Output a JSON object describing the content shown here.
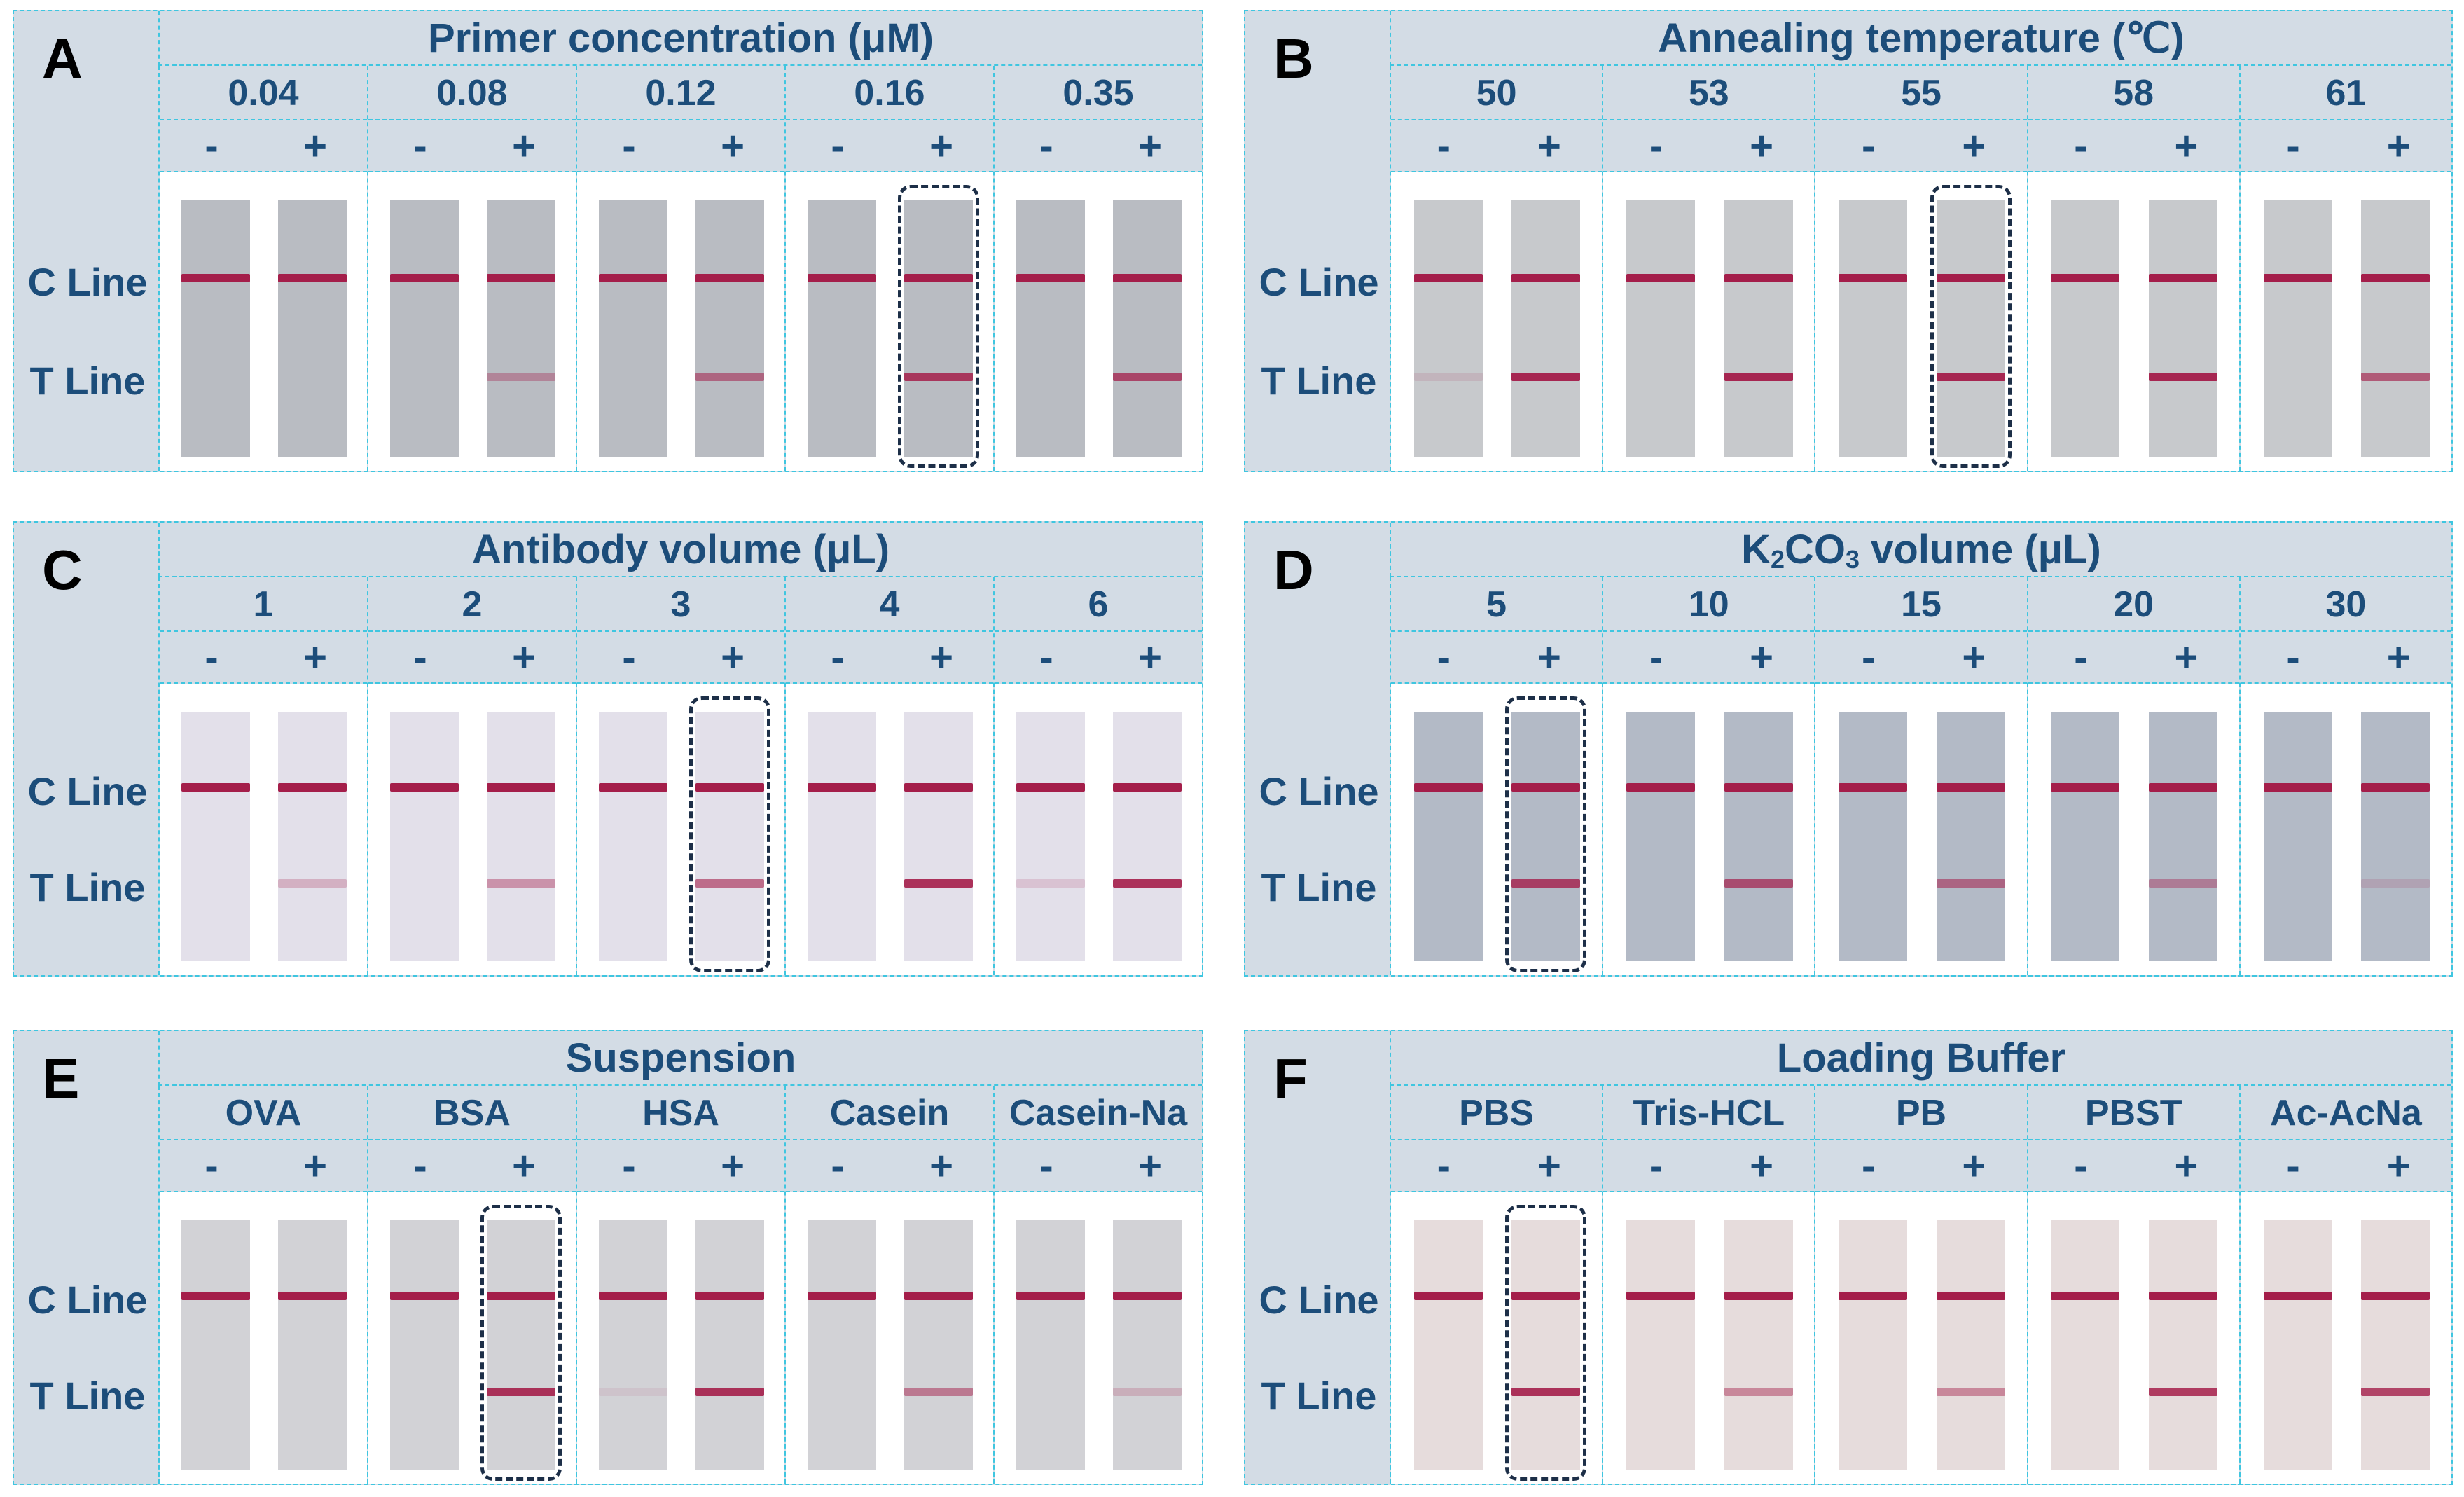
{
  "row_labels": {
    "c_line": "C Line",
    "t_line": "T Line"
  },
  "signs": {
    "neg": "-",
    "pos": "+"
  },
  "colors": {
    "panel_bg": "#d3dce5",
    "dashed": "#3fc6e0",
    "label": "#1c4d7a",
    "band": "#a41e4a",
    "highlight": "#1d2f48"
  },
  "panels": [
    {
      "letter": "A",
      "title": "Primer concentration (μM)",
      "selected": 3,
      "groups": [
        "0.04",
        "0.08",
        "0.12",
        "0.16",
        "0.35"
      ],
      "t_intensity": [
        [
          0,
          0
        ],
        [
          0,
          0.35
        ],
        [
          0,
          0.55
        ],
        [
          0,
          0.85
        ],
        [
          0,
          0.75
        ]
      ],
      "strip_tone": "#b9bcc2"
    },
    {
      "letter": "B",
      "title": "Annealing temperature (℃)",
      "selected": 2,
      "groups": [
        "50",
        "53",
        "55",
        "58",
        "61"
      ],
      "t_intensity": [
        [
          0.12,
          0.95
        ],
        [
          0,
          0.95
        ],
        [
          0,
          0.95
        ],
        [
          0,
          0.95
        ],
        [
          0,
          0.65
        ]
      ],
      "strip_tone": "#c7c9cc"
    },
    {
      "letter": "C",
      "title": "Antibody volume (μL)",
      "selected": 2,
      "groups": [
        "1",
        "2",
        "3",
        "4",
        "6"
      ],
      "t_intensity": [
        [
          0,
          0.25
        ],
        [
          0,
          0.4
        ],
        [
          0,
          0.6
        ],
        [
          0,
          0.9
        ],
        [
          0.15,
          0.9
        ]
      ],
      "strip_tone": "#e3e0ea"
    },
    {
      "letter": "D",
      "title_pre": "K",
      "title_sub": "2",
      "title_mid": "CO",
      "title_sub2": "3",
      "title_post": " volume (μL)",
      "selected": 0,
      "groups": [
        "5",
        "10",
        "15",
        "20",
        "30"
      ],
      "t_intensity": [
        [
          0,
          0.8
        ],
        [
          0,
          0.7
        ],
        [
          0,
          0.55
        ],
        [
          0,
          0.4
        ],
        [
          0,
          0.15
        ]
      ],
      "strip_tone": "#b3bac6"
    },
    {
      "letter": "E",
      "title": "Suspension",
      "selected": 1,
      "groups": [
        "OVA",
        "BSA",
        "HSA",
        "Casein",
        "Casein-Na"
      ],
      "t_intensity": [
        [
          0,
          0
        ],
        [
          0,
          0.9
        ],
        [
          0.08,
          0.9
        ],
        [
          0,
          0.5
        ],
        [
          0,
          0.2
        ]
      ],
      "strip_tone": "#d2d2d6"
    },
    {
      "letter": "F",
      "title": "Loading Buffer",
      "selected": 0,
      "groups": [
        "PBS",
        "Tris-HCL",
        "PB",
        "PBST",
        "Ac-AcNa"
      ],
      "t_intensity": [
        [
          0,
          0.9
        ],
        [
          0,
          0.45
        ],
        [
          0,
          0.45
        ],
        [
          0,
          0.85
        ],
        [
          0,
          0.8
        ]
      ],
      "strip_tone": "#e6dcdc"
    }
  ]
}
